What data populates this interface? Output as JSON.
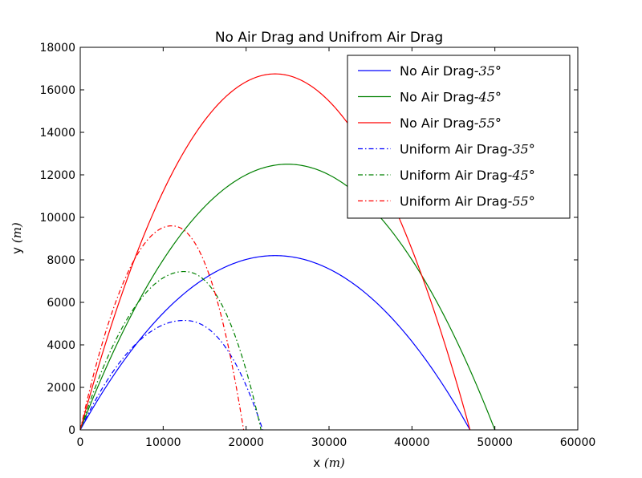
{
  "chart_data": {
    "type": "line",
    "title": "No Air Drag and Unifrom Air Drag",
    "xlabel": "x",
    "xlabel_unit": "(m)",
    "ylabel": "y",
    "ylabel_unit": "(m)",
    "xlim": [
      0,
      60000
    ],
    "ylim": [
      0,
      18000
    ],
    "xticks": [
      0,
      10000,
      20000,
      30000,
      40000,
      50000,
      60000
    ],
    "yticks": [
      0,
      2000,
      4000,
      6000,
      8000,
      10000,
      12000,
      14000,
      16000,
      18000
    ],
    "grid": false,
    "legend_position": "top-right",
    "series": [
      {
        "name": "No Air Drag-35°",
        "label_text": "No Air Drag-",
        "label_math": "35°",
        "color": "#0000ff",
        "style": "solid",
        "model": "parabola",
        "range": 47000,
        "peak": 8200
      },
      {
        "name": "No Air Drag-45°",
        "label_text": "No Air Drag-",
        "label_math": "45°",
        "color": "#008000",
        "style": "solid",
        "model": "parabola",
        "range": 50000,
        "peak": 12500
      },
      {
        "name": "No Air Drag-55°",
        "label_text": "No Air Drag-",
        "label_math": "55°",
        "color": "#ff0000",
        "style": "solid",
        "model": "parabola",
        "range": 47000,
        "peak": 16750
      },
      {
        "name": "Uniform Air Drag-35°",
        "label_text": "Uniform Air Drag-",
        "label_math": "35°",
        "color": "#0000ff",
        "style": "dashdot",
        "model": "drag",
        "range": 22000,
        "peak": 5150,
        "peak_x": 12500
      },
      {
        "name": "Uniform Air Drag-45°",
        "label_text": "Uniform Air Drag-",
        "label_math": "45°",
        "color": "#008000",
        "style": "dashdot",
        "model": "drag",
        "range": 21800,
        "peak": 7450,
        "peak_x": 12500
      },
      {
        "name": "Uniform Air Drag-55°",
        "label_text": "Uniform Air Drag-",
        "label_math": "55°",
        "color": "#ff0000",
        "style": "dashdot",
        "model": "drag",
        "range": 19700,
        "peak": 9600,
        "peak_x": 11000
      }
    ]
  }
}
